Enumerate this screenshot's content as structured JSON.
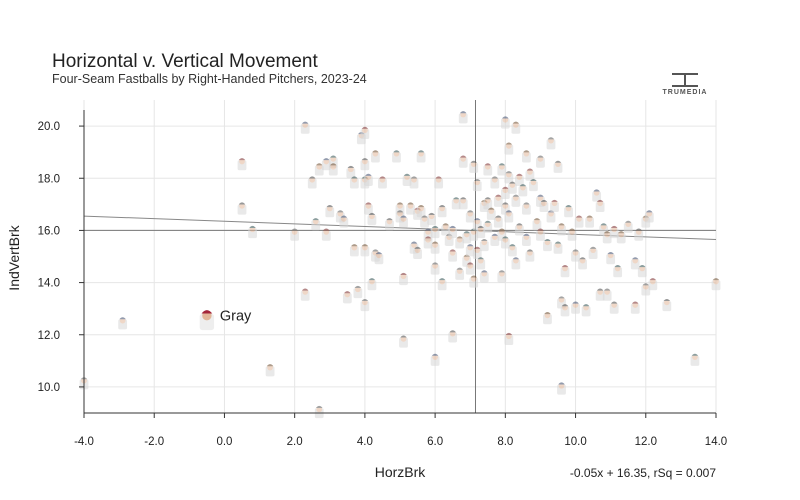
{
  "header": {
    "title": "Horizontal v. Vertical Movement",
    "subtitle": "Four-Seam Fastballs by Right-Handed Pitchers, 2023-24",
    "logo_text": "TRUMEDIA"
  },
  "chart_data": {
    "type": "scatter",
    "title": "Horizontal v. Vertical Movement",
    "subtitle": "Four-Seam Fastballs by Right-Handed Pitchers, 2023-24",
    "xlabel": "HorzBrk",
    "ylabel": "IndVertBrk",
    "xlim": [
      -4.0,
      14.0
    ],
    "ylim": [
      9.0,
      21.0
    ],
    "x_ticks": [
      -4.0,
      -2.0,
      0.0,
      2.0,
      4.0,
      6.0,
      8.0,
      10.0,
      12.0,
      14.0
    ],
    "y_ticks": [
      10.0,
      12.0,
      14.0,
      16.0,
      18.0,
      20.0
    ],
    "x_tick_labels": [
      "-4.0",
      "-2.0",
      "0.0",
      "2.0",
      "4.0",
      "6.0",
      "8.0",
      "10.0",
      "12.0",
      "14.0"
    ],
    "y_tick_labels": [
      "10.0",
      "12.0",
      "14.0",
      "16.0",
      "18.0",
      "20.0"
    ],
    "reference_lines": {
      "x_mean": 7.15,
      "y_mean": 16.0
    },
    "trendline": {
      "slope": -0.05,
      "intercept": 16.35,
      "label": "-0.05x + 16.35, rSq = 0.007"
    },
    "highlight": {
      "name": "Gray",
      "x": -0.5,
      "y": 12.7,
      "color": "#a3263a"
    },
    "points": [
      [
        -4.0,
        10.2
      ],
      [
        -2.9,
        12.5
      ],
      [
        0.5,
        18.6
      ],
      [
        0.5,
        16.9
      ],
      [
        0.8,
        16.0
      ],
      [
        1.3,
        10.7
      ],
      [
        2.0,
        15.9
      ],
      [
        2.3,
        20.0
      ],
      [
        2.3,
        13.6
      ],
      [
        2.5,
        17.9
      ],
      [
        2.6,
        16.3
      ],
      [
        2.7,
        18.4
      ],
      [
        2.7,
        9.1
      ],
      [
        2.9,
        18.6
      ],
      [
        2.9,
        15.9
      ],
      [
        3.0,
        16.8
      ],
      [
        3.1,
        18.7
      ],
      [
        3.1,
        18.4
      ],
      [
        3.3,
        16.6
      ],
      [
        3.4,
        16.4
      ],
      [
        3.5,
        13.5
      ],
      [
        3.6,
        18.3
      ],
      [
        3.7,
        17.9
      ],
      [
        3.7,
        15.3
      ],
      [
        3.8,
        13.7
      ],
      [
        3.9,
        19.6
      ],
      [
        4.0,
        19.8
      ],
      [
        4.0,
        18.6
      ],
      [
        4.0,
        17.9
      ],
      [
        4.0,
        15.3
      ],
      [
        4.0,
        13.2
      ],
      [
        4.1,
        18.0
      ],
      [
        4.1,
        16.9
      ],
      [
        4.2,
        16.5
      ],
      [
        4.2,
        14.0
      ],
      [
        4.3,
        18.9
      ],
      [
        4.3,
        15.1
      ],
      [
        4.4,
        15.0
      ],
      [
        4.5,
        17.9
      ],
      [
        4.7,
        16.3
      ],
      [
        4.9,
        18.9
      ],
      [
        5.0,
        16.9
      ],
      [
        5.0,
        16.6
      ],
      [
        5.1,
        16.4
      ],
      [
        5.1,
        14.2
      ],
      [
        5.1,
        11.8
      ],
      [
        5.2,
        18.0
      ],
      [
        5.3,
        16.9
      ],
      [
        5.4,
        17.9
      ],
      [
        5.4,
        15.4
      ],
      [
        5.5,
        16.7
      ],
      [
        5.5,
        15.2
      ],
      [
        5.6,
        18.9
      ],
      [
        5.6,
        16.8
      ],
      [
        5.7,
        16.4
      ],
      [
        5.8,
        15.9
      ],
      [
        5.8,
        15.6
      ],
      [
        5.9,
        16.5
      ],
      [
        6.0,
        16.0
      ],
      [
        6.0,
        15.4
      ],
      [
        6.0,
        14.6
      ],
      [
        6.0,
        11.1
      ],
      [
        6.1,
        17.9
      ],
      [
        6.2,
        16.8
      ],
      [
        6.2,
        14.0
      ],
      [
        6.3,
        16.1
      ],
      [
        6.4,
        15.7
      ],
      [
        6.5,
        16.0
      ],
      [
        6.5,
        15.1
      ],
      [
        6.5,
        12.0
      ],
      [
        6.6,
        17.1
      ],
      [
        6.7,
        15.6
      ],
      [
        6.7,
        14.4
      ],
      [
        6.8,
        20.4
      ],
      [
        6.8,
        18.7
      ],
      [
        6.8,
        17.1
      ],
      [
        6.9,
        15.8
      ],
      [
        6.9,
        14.9
      ],
      [
        7.0,
        16.6
      ],
      [
        7.0,
        15.3
      ],
      [
        7.0,
        14.6
      ],
      [
        7.1,
        18.5
      ],
      [
        7.1,
        15.9
      ],
      [
        7.1,
        14.1
      ],
      [
        7.2,
        17.8
      ],
      [
        7.2,
        16.3
      ],
      [
        7.2,
        15.2
      ],
      [
        7.3,
        16.0
      ],
      [
        7.3,
        14.8
      ],
      [
        7.4,
        17.0
      ],
      [
        7.4,
        15.5
      ],
      [
        7.4,
        14.3
      ],
      [
        7.5,
        18.4
      ],
      [
        7.5,
        17.1
      ],
      [
        7.5,
        16.2
      ],
      [
        7.6,
        16.7
      ],
      [
        7.7,
        17.9
      ],
      [
        7.7,
        15.7
      ],
      [
        7.8,
        17.2
      ],
      [
        7.8,
        16.4
      ],
      [
        7.9,
        18.4
      ],
      [
        7.9,
        15.9
      ],
      [
        7.9,
        14.3
      ],
      [
        8.0,
        20.2
      ],
      [
        8.0,
        17.5
      ],
      [
        8.0,
        16.9
      ],
      [
        8.0,
        15.6
      ],
      [
        8.1,
        19.2
      ],
      [
        8.1,
        18.1
      ],
      [
        8.1,
        16.6
      ],
      [
        8.1,
        11.9
      ],
      [
        8.2,
        17.7
      ],
      [
        8.2,
        15.3
      ],
      [
        8.3,
        20.0
      ],
      [
        8.3,
        17.2
      ],
      [
        8.3,
        14.8
      ],
      [
        8.4,
        18.0
      ],
      [
        8.4,
        16.1
      ],
      [
        8.5,
        17.6
      ],
      [
        8.6,
        18.9
      ],
      [
        8.6,
        16.9
      ],
      [
        8.6,
        15.7
      ],
      [
        8.7,
        18.2
      ],
      [
        8.7,
        15.1
      ],
      [
        8.8,
        17.8
      ],
      [
        8.9,
        16.3
      ],
      [
        9.0,
        18.7
      ],
      [
        9.0,
        17.2
      ],
      [
        9.0,
        15.9
      ],
      [
        9.1,
        17.0
      ],
      [
        9.2,
        15.5
      ],
      [
        9.2,
        12.7
      ],
      [
        9.3,
        19.4
      ],
      [
        9.3,
        16.6
      ],
      [
        9.4,
        17.0
      ],
      [
        9.5,
        18.5
      ],
      [
        9.5,
        15.4
      ],
      [
        9.6,
        16.1
      ],
      [
        9.6,
        13.3
      ],
      [
        9.6,
        10.0
      ],
      [
        9.7,
        14.5
      ],
      [
        9.7,
        13.0
      ],
      [
        9.8,
        16.8
      ],
      [
        9.9,
        15.9
      ],
      [
        10.0,
        15.1
      ],
      [
        10.0,
        13.1
      ],
      [
        10.1,
        16.4
      ],
      [
        10.2,
        14.8
      ],
      [
        10.3,
        13.0
      ],
      [
        10.4,
        16.4
      ],
      [
        10.5,
        15.2
      ],
      [
        10.6,
        17.4
      ],
      [
        10.7,
        17.0
      ],
      [
        10.7,
        13.6
      ],
      [
        10.8,
        16.1
      ],
      [
        10.9,
        15.8
      ],
      [
        10.9,
        13.6
      ],
      [
        11.0,
        15.0
      ],
      [
        11.1,
        16.0
      ],
      [
        11.1,
        13.1
      ],
      [
        11.2,
        14.5
      ],
      [
        11.3,
        15.8
      ],
      [
        11.5,
        16.2
      ],
      [
        11.7,
        14.8
      ],
      [
        11.7,
        13.1
      ],
      [
        11.8,
        15.9
      ],
      [
        11.9,
        14.5
      ],
      [
        12.0,
        16.4
      ],
      [
        12.0,
        13.8
      ],
      [
        12.1,
        16.6
      ],
      [
        12.2,
        14.0
      ],
      [
        12.6,
        13.2
      ],
      [
        13.4,
        11.1
      ],
      [
        14.0,
        14.0
      ]
    ]
  }
}
